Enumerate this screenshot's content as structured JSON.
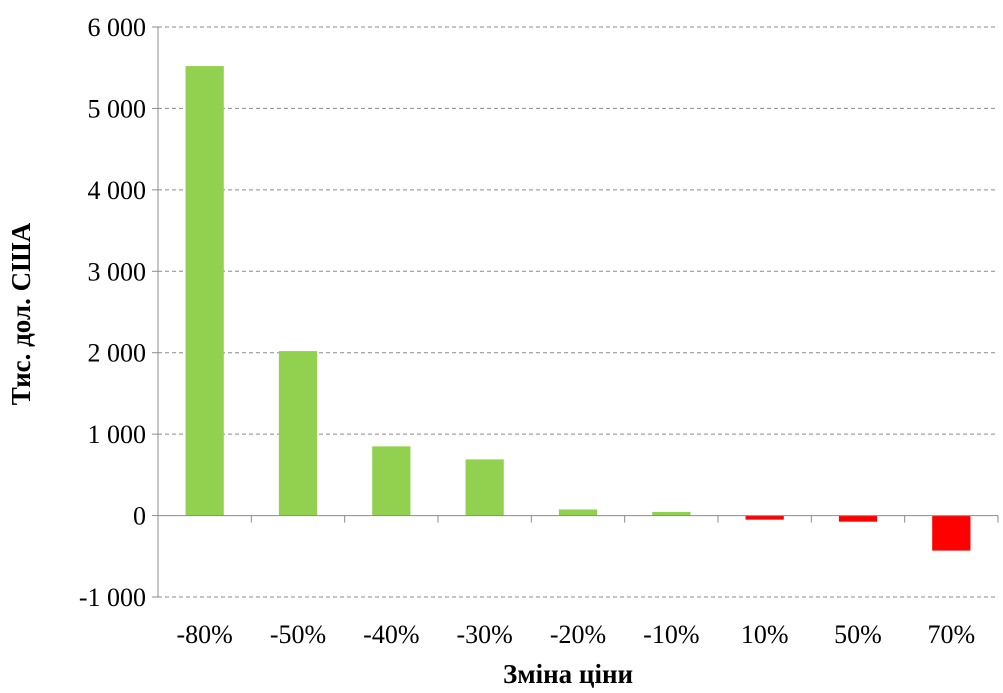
{
  "chart_data": {
    "type": "bar",
    "title": "",
    "xlabel": "Зміна ціни",
    "ylabel": "Тис. дол. США",
    "categories": [
      "-80%",
      "-50%",
      "-40%",
      "-30%",
      "-20%",
      "-10%",
      "10%",
      "50%",
      "70%"
    ],
    "values": [
      5520,
      2020,
      850,
      690,
      75,
      45,
      -50,
      -75,
      -430
    ],
    "ylim": [
      -1000,
      6000
    ],
    "yticks": [
      -1000,
      0,
      1000,
      2000,
      3000,
      4000,
      5000,
      6000
    ],
    "ytick_labels": [
      "-1 000",
      "0",
      "1 000",
      "2 000",
      "3 000",
      "4 000",
      "5 000",
      "6 000"
    ],
    "grid": true,
    "legend": "none",
    "colors": {
      "positive": "#92d050",
      "negative": "#ff0000"
    }
  }
}
